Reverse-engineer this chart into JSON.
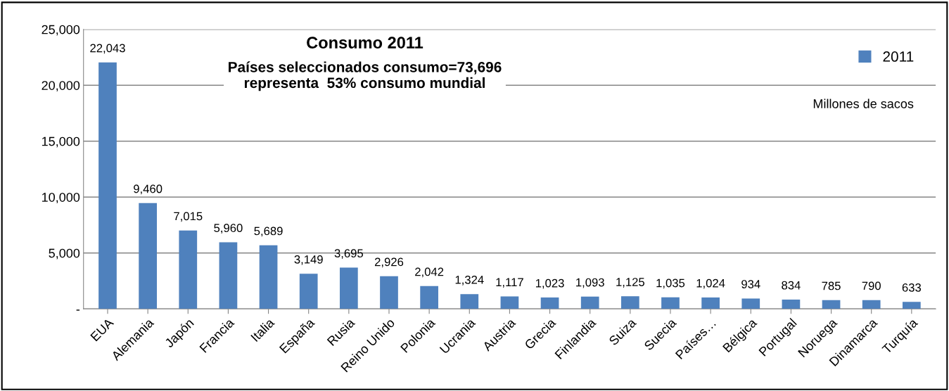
{
  "chart_data": {
    "type": "bar",
    "title": "Consumo 2011",
    "subtitle": "Países seleccionados consumo=73,696\nrepresenta  53% consumo mundial",
    "annotations": [
      "Millones de sacos"
    ],
    "categories": [
      "EUA",
      "Alemania",
      "Japón",
      "Francia",
      "Italia",
      "España",
      "Rusia",
      "Reino Unido",
      "Polonia",
      "Ucrania",
      "Austria",
      "Grecia",
      "Finlandia",
      "Suiza",
      "Suecia",
      "Países…",
      "Bélgica",
      "Portugal",
      "Noruega",
      "Dinamarca",
      "Turquía"
    ],
    "series": [
      {
        "name": "2011",
        "color": "#4f81bd",
        "values": [
          22043,
          9460,
          7015,
          5960,
          5689,
          3149,
          3695,
          2926,
          2042,
          1324,
          1117,
          1023,
          1093,
          1125,
          1035,
          1024,
          934,
          834,
          785,
          790,
          633
        ],
        "value_labels": [
          "22,043",
          "9,460",
          "7,015",
          "5,960",
          "5,689",
          "3,149",
          "3,695",
          "2,926",
          "2,042",
          "1,324",
          "1,117",
          "1,023",
          "1,093",
          "1,125",
          "1,035",
          "1,024",
          "934",
          "834",
          "785",
          "790",
          "633"
        ]
      }
    ],
    "ylim": [
      0,
      25000
    ],
    "yticks": [
      {
        "value": 0,
        "label": "-"
      },
      {
        "value": 5000,
        "label": "5,000"
      },
      {
        "value": 10000,
        "label": "10,000"
      },
      {
        "value": 15000,
        "label": "15,000"
      },
      {
        "value": 20000,
        "label": "20,000"
      },
      {
        "value": 25000,
        "label": "25,000"
      }
    ],
    "grid": "y",
    "legend": "top right"
  }
}
